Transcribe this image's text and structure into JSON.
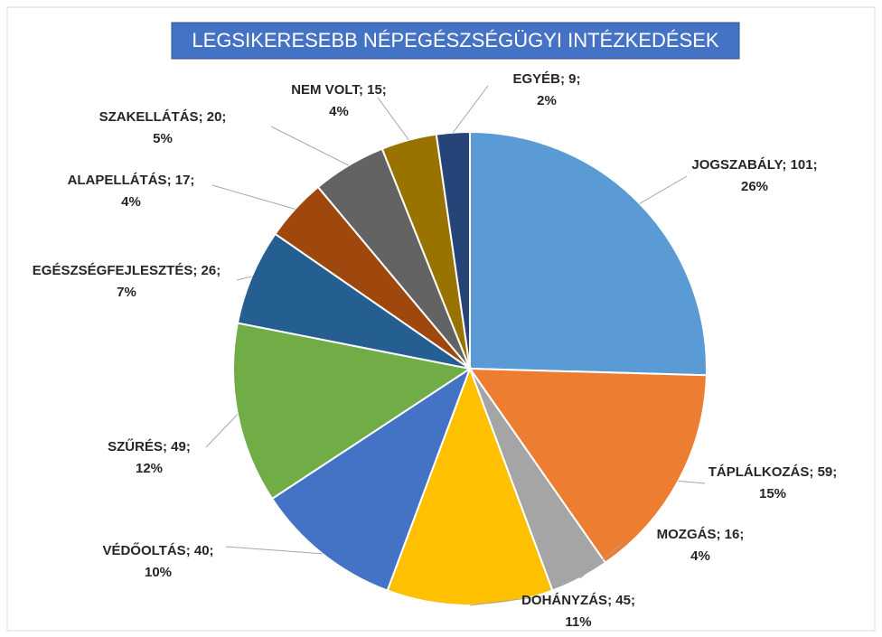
{
  "chart_data": {
    "type": "pie",
    "title": "LEGSIKERESEBB NÉPEGÉSZSÉGÜGYI INTÉZKEDÉSEK",
    "separator": "; ",
    "categories": [
      "JOGSZABÁLY",
      "TÁPLÁLKOZÁS",
      "MOZGÁS",
      "DOHÁNYZÁS",
      "VÉDŐOLTÁS",
      "SZŰRÉS",
      "EGÉSZSÉGFEJLESZTÉS",
      "ALAPELLÁTÁS",
      "SZAKELLÁTÁS",
      "NEM VOLT",
      "EGYÉB"
    ],
    "values": [
      101,
      59,
      16,
      45,
      40,
      49,
      26,
      17,
      20,
      15,
      9
    ],
    "percent_labels": [
      "26%",
      "15%",
      "4%",
      "11%",
      "10%",
      "12%",
      "7%",
      "4%",
      "5%",
      "4%",
      "2%"
    ],
    "colors": [
      "#5b9bd5",
      "#ed7d31",
      "#a5a5a5",
      "#ffc000",
      "#4472c4",
      "#70ad47",
      "#255e91",
      "#9e480e",
      "#636363",
      "#997300",
      "#264478"
    ]
  }
}
